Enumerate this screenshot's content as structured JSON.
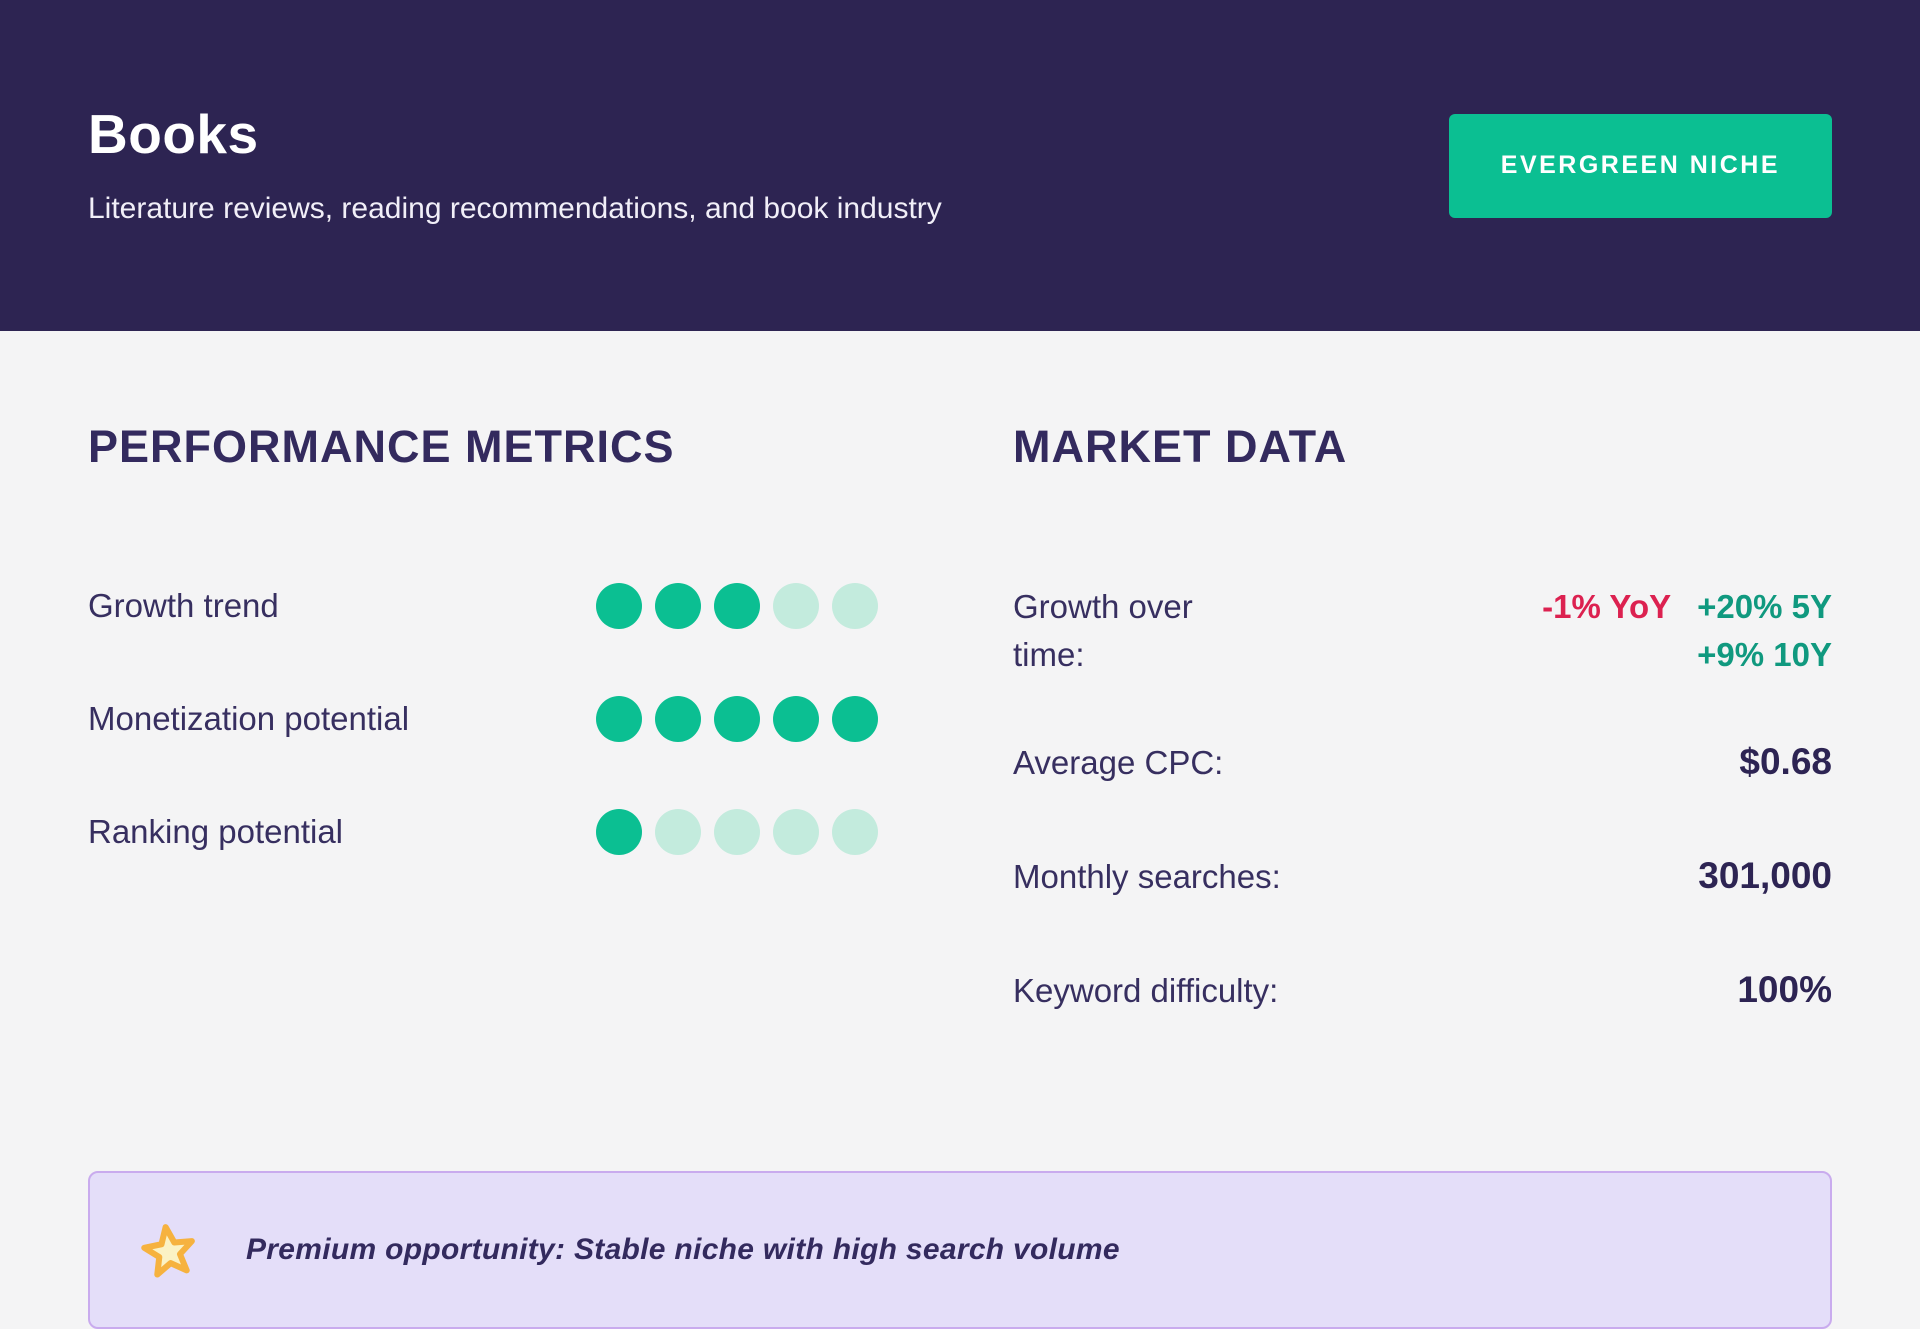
{
  "header": {
    "title": "Books",
    "subtitle": "Literature reviews, reading recommendations, and book industry",
    "badge": "EVERGREEN NICHE"
  },
  "performance": {
    "heading": "PERFORMANCE METRICS",
    "metrics": [
      {
        "label": "Growth trend",
        "score": 3,
        "max": 5
      },
      {
        "label": "Monetization potential",
        "score": 5,
        "max": 5
      },
      {
        "label": "Ranking potential",
        "score": 1,
        "max": 5
      }
    ]
  },
  "market": {
    "heading": "MARKET DATA",
    "growth_row": {
      "label": "Growth over time:",
      "yoy": "-1% YoY",
      "five_year": "+20% 5Y",
      "ten_year": "+9% 10Y"
    },
    "rows": [
      {
        "label": "Average CPC:",
        "value": "$0.68"
      },
      {
        "label": "Monthly searches:",
        "value": "301,000"
      },
      {
        "label": "Keyword difficulty:",
        "value": "100%"
      }
    ]
  },
  "callout": {
    "icon": "star-icon",
    "text": "Premium opportunity: Stable niche with high search volume"
  },
  "colors": {
    "header_bg": "#2D2452",
    "body_bg": "#F4F4F5",
    "accent_green": "#0BBF92",
    "dot_inactive": "#C3EBDD",
    "positive_teal": "#10997F",
    "negative_red": "#DC2150",
    "text_heading": "#332A5E",
    "text_label": "#372F60",
    "text_dark": "#2D2453",
    "callout_bg": "#E4DEF9",
    "callout_border": "#C9ABEE",
    "star_fill": "#FBF2C4",
    "star_stroke": "#F6B23F"
  }
}
